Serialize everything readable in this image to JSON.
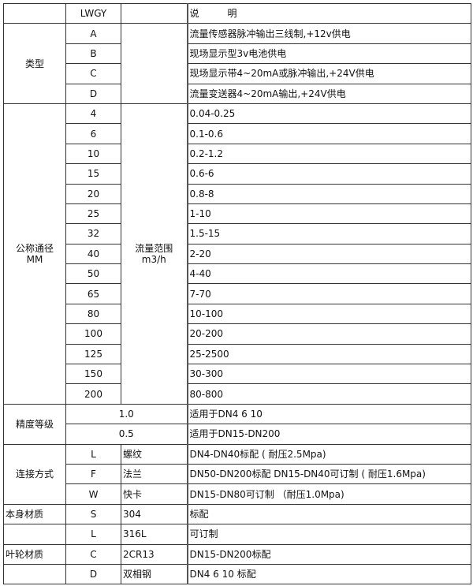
{
  "header": {
    "code": "LWGY",
    "desc": "说　　　明"
  },
  "type": {
    "label": "类型",
    "items": [
      {
        "code": "A",
        "desc": "流量传感器脉冲输出三线制,+12v供电"
      },
      {
        "code": "B",
        "desc": "现场显示型3v电池供电"
      },
      {
        "code": "C",
        "desc": "现场显示带4~20mA或脉冲输出,+24V供电"
      },
      {
        "code": "D",
        "desc": "流量变送器4~20mA输出,+24V供电"
      }
    ]
  },
  "diameter": {
    "label": "公称通径",
    "unit": "MM",
    "range_label": "流量范围",
    "range_unit": "m3/h",
    "items": [
      {
        "code": "4",
        "desc": "0.04-0.25"
      },
      {
        "code": "6",
        "desc": "0.1-0.6"
      },
      {
        "code": "10",
        "desc": "0.2-1.2"
      },
      {
        "code": "15",
        "desc": "0.6-6"
      },
      {
        "code": "20",
        "desc": "0.8-8"
      },
      {
        "code": "25",
        "desc": "1-10"
      },
      {
        "code": "32",
        "desc": "1.5-15"
      },
      {
        "code": "40",
        "desc": "2-20"
      },
      {
        "code": "50",
        "desc": "4-40"
      },
      {
        "code": "65",
        "desc": "7-70"
      },
      {
        "code": "80",
        "desc": "10-100"
      },
      {
        "code": "100",
        "desc": "20-200"
      },
      {
        "code": "125",
        "desc": "25-2500"
      },
      {
        "code": "150",
        "desc": "30-300"
      },
      {
        "code": "200",
        "desc": "80-800"
      }
    ]
  },
  "accuracy": {
    "label": "精度等级",
    "items": [
      {
        "code": "1.0",
        "desc": "适用于DN4  6  10"
      },
      {
        "code": "0.5",
        "desc": "适用于DN15-DN200"
      }
    ]
  },
  "connection": {
    "label": "连接方式",
    "items": [
      {
        "code": "L",
        "name": "螺纹",
        "desc": "DN4-DN40标配 ( 耐压2.5Mpa)"
      },
      {
        "code": "F",
        "name": "法兰",
        "desc": "DN50-DN200标配 DN15-DN40可订制 ( 耐压1.6Mpa)"
      },
      {
        "code": "W",
        "name": "快卡",
        "desc": "DN15-DN80可订制 （耐压1.0Mpa)"
      }
    ]
  },
  "body_material": {
    "label": "本身材质",
    "items": [
      {
        "code": "S",
        "name": "304",
        "desc": "标配"
      },
      {
        "code": "L",
        "name": "316L",
        "desc": "可订制"
      }
    ]
  },
  "impeller_material": {
    "label": "叶轮材质",
    "items": [
      {
        "code": "C",
        "name": "2CR13",
        "desc": "DN15-DN200标配"
      },
      {
        "code": "D",
        "name": "双相钢",
        "desc": "DN4 6 10 标配"
      }
    ]
  }
}
